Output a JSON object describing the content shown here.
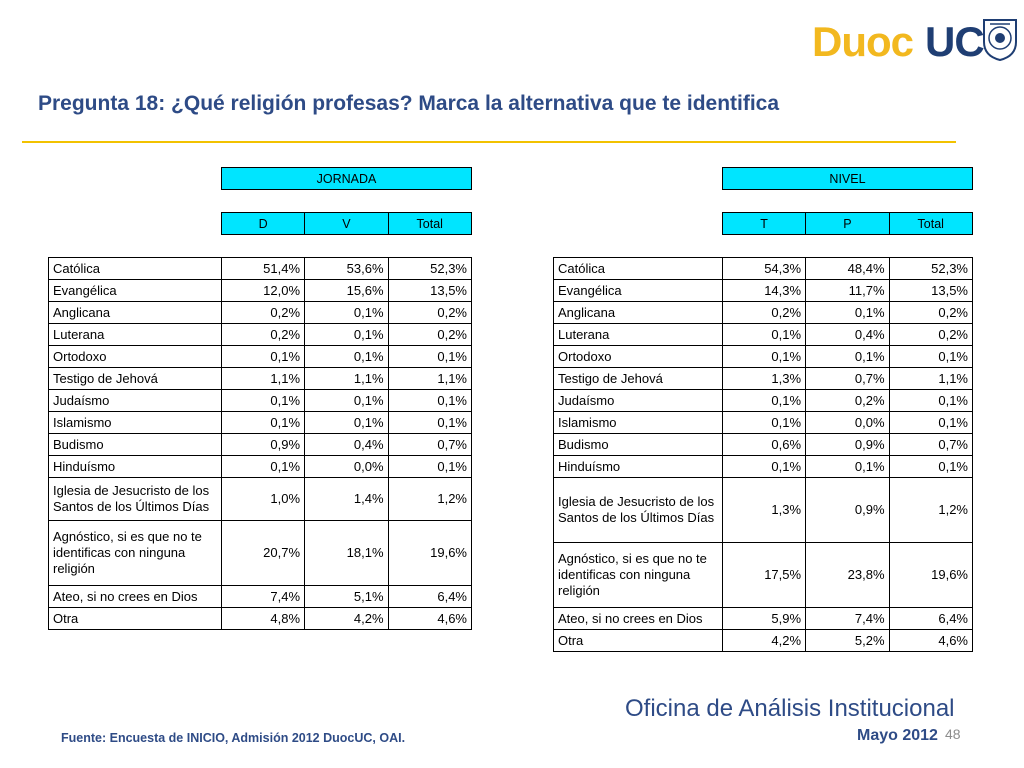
{
  "logo": {
    "part1": "Duoc",
    "part2": "UC"
  },
  "title": "Pregunta 18: ¿Qué religión profesas? Marca la alternativa que te identifica",
  "jornada": {
    "group_label": "JORNADA",
    "columns": [
      "D",
      "V",
      "Total"
    ],
    "rows": [
      [
        "Católica",
        "51,4%",
        "53,6%",
        "52,3%"
      ],
      [
        "Evangélica",
        "12,0%",
        "15,6%",
        "13,5%"
      ],
      [
        "Anglicana",
        "0,2%",
        "0,1%",
        "0,2%"
      ],
      [
        "Luterana",
        "0,2%",
        "0,1%",
        "0,2%"
      ],
      [
        "Ortodoxo",
        "0,1%",
        "0,1%",
        "0,1%"
      ],
      [
        "Testigo de Jehová",
        "1,1%",
        "1,1%",
        "1,1%"
      ],
      [
        "Judaísmo",
        "0,1%",
        "0,1%",
        "0,1%"
      ],
      [
        "Islamismo",
        "0,1%",
        "0,1%",
        "0,1%"
      ],
      [
        "Budismo",
        "0,9%",
        "0,4%",
        "0,7%"
      ],
      [
        "Hinduísmo",
        "0,1%",
        "0,0%",
        "0,1%"
      ],
      [
        "Iglesia de Jesucristo de los Santos de los Últimos Días",
        "1,0%",
        "1,4%",
        "1,2%"
      ],
      [
        "Agnóstico, si es que no te identificas con ninguna religión",
        "20,7%",
        "18,1%",
        "19,6%"
      ],
      [
        "Ateo, si no crees en Dios",
        "7,4%",
        "5,1%",
        "6,4%"
      ],
      [
        "Otra",
        "4,8%",
        "4,2%",
        "4,6%"
      ]
    ]
  },
  "nivel": {
    "group_label": "NIVEL",
    "columns": [
      "T",
      "P",
      "Total"
    ],
    "rows": [
      [
        "Católica",
        "54,3%",
        "48,4%",
        "52,3%"
      ],
      [
        "Evangélica",
        "14,3%",
        "11,7%",
        "13,5%"
      ],
      [
        "Anglicana",
        "0,2%",
        "0,1%",
        "0,2%"
      ],
      [
        "Luterana",
        "0,1%",
        "0,4%",
        "0,2%"
      ],
      [
        "Ortodoxo",
        "0,1%",
        "0,1%",
        "0,1%"
      ],
      [
        "Testigo de Jehová",
        "1,3%",
        "0,7%",
        "1,1%"
      ],
      [
        "Judaísmo",
        "0,1%",
        "0,2%",
        "0,1%"
      ],
      [
        "Islamismo",
        "0,1%",
        "0,0%",
        "0,1%"
      ],
      [
        "Budismo",
        "0,6%",
        "0,9%",
        "0,7%"
      ],
      [
        "Hinduísmo",
        "0,1%",
        "0,1%",
        "0,1%"
      ],
      [
        "Iglesia de Jesucristo de los Santos de los Últimos Días",
        "1,3%",
        "0,9%",
        "1,2%"
      ],
      [
        "Agnóstico, si es que no te identificas con ninguna religión",
        "17,5%",
        "23,8%",
        "19,6%"
      ],
      [
        "Ateo, si no crees en Dios",
        "5,9%",
        "7,4%",
        "6,4%"
      ],
      [
        "Otra",
        "4,2%",
        "5,2%",
        "4,6%"
      ]
    ]
  },
  "footer": {
    "office": "Oficina de Análisis Institucional",
    "source": "Fuente: Encuesta de INICIO, Admisión 2012 DuocUC, OAI.",
    "date": "Mayo 2012",
    "page_number": "48"
  },
  "colors": {
    "header_fill": "#00E5FF",
    "title_blue": "#2E4B86",
    "rule_yellow": "#F2C200",
    "logo_gold": "#F2B81F",
    "logo_navy": "#1F3E73"
  }
}
